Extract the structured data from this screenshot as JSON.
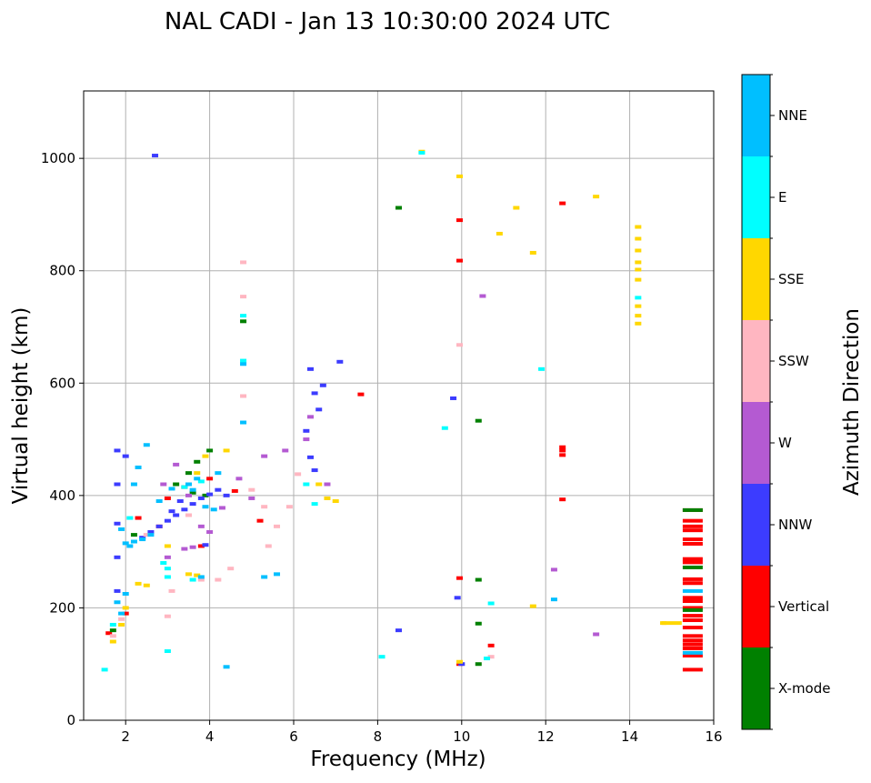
{
  "chart_data": {
    "type": "scatter",
    "title": "NAL CADI - Jan 13 10:30:00 2024 UTC",
    "xlabel": "Frequency (MHz)",
    "ylabel": "Virtual height (km)",
    "xlim": [
      1,
      16
    ],
    "ylim": [
      0,
      1120
    ],
    "xticks": [
      2,
      4,
      6,
      8,
      10,
      12,
      14,
      16
    ],
    "yticks": [
      0,
      200,
      400,
      600,
      800,
      1000
    ],
    "grid": true,
    "colorbar": {
      "label": "Azimuth Direction",
      "categories": [
        "X-mode",
        "Vertical",
        "NNW",
        "W",
        "SSW",
        "SSE",
        "E",
        "NNE"
      ],
      "colors": [
        "#008000",
        "#ff0000",
        "#3c3cff",
        "#b45ad2",
        "#ffb6c1",
        "#ffd700",
        "#00ffff",
        "#00bfff"
      ]
    },
    "series": [
      {
        "name": "Vertical",
        "color": "#ff0000",
        "points": [
          [
            15.5,
            374
          ],
          [
            15.5,
            355
          ],
          [
            15.5,
            345
          ],
          [
            15.5,
            338
          ],
          [
            15.5,
            322
          ],
          [
            15.5,
            314
          ],
          [
            15.5,
            287
          ],
          [
            15.5,
            281
          ],
          [
            15.5,
            251
          ],
          [
            15.5,
            244
          ],
          [
            15.5,
            218
          ],
          [
            15.5,
            212
          ],
          [
            15.5,
            200
          ],
          [
            15.5,
            186
          ],
          [
            15.5,
            178
          ],
          [
            15.5,
            165
          ],
          [
            15.5,
            150
          ],
          [
            15.5,
            142
          ],
          [
            15.5,
            135
          ],
          [
            15.5,
            128
          ],
          [
            15.5,
            115
          ],
          [
            15.5,
            90
          ],
          [
            12.4,
            920
          ],
          [
            12.4,
            486
          ],
          [
            12.4,
            480
          ],
          [
            12.4,
            472
          ],
          [
            12.4,
            393
          ],
          [
            9.95,
            890
          ],
          [
            9.95,
            818
          ],
          [
            9.95,
            253
          ],
          [
            9.95,
            100
          ],
          [
            10.7,
            133
          ],
          [
            7.6,
            580
          ],
          [
            2.3,
            360
          ],
          [
            2.8,
            345
          ],
          [
            3.4,
            415
          ],
          [
            3.8,
            310
          ],
          [
            4.0,
            430
          ],
          [
            4.6,
            408
          ],
          [
            5.2,
            355
          ],
          [
            1.6,
            155
          ],
          [
            2.0,
            190
          ],
          [
            3.0,
            395
          ]
        ]
      },
      {
        "name": "X-mode",
        "color": "#008000",
        "points": [
          [
            15.5,
            374
          ],
          [
            15.5,
            272
          ],
          [
            15.5,
            196
          ],
          [
            8.5,
            912
          ],
          [
            10.4,
            533
          ],
          [
            10.4,
            250
          ],
          [
            10.4,
            172
          ],
          [
            10.4,
            100
          ],
          [
            4.8,
            710
          ],
          [
            3.6,
            405
          ],
          [
            3.9,
            400
          ],
          [
            3.7,
            460
          ],
          [
            4.0,
            480
          ],
          [
            3.2,
            420
          ],
          [
            3.5,
            440
          ],
          [
            1.7,
            160
          ],
          [
            2.2,
            330
          ]
        ]
      },
      {
        "name": "NNW",
        "color": "#3c3cff",
        "points": [
          [
            2.7,
            1005
          ],
          [
            6.4,
            625
          ],
          [
            6.5,
            582
          ],
          [
            6.7,
            596
          ],
          [
            6.6,
            553
          ],
          [
            6.3,
            515
          ],
          [
            6.4,
            468
          ],
          [
            6.5,
            445
          ],
          [
            7.1,
            638
          ],
          [
            9.8,
            573
          ],
          [
            9.9,
            218
          ],
          [
            8.5,
            160
          ],
          [
            10.0,
            100
          ],
          [
            2.4,
            325
          ],
          [
            2.6,
            335
          ],
          [
            2.8,
            345
          ],
          [
            3.0,
            355
          ],
          [
            3.2,
            365
          ],
          [
            3.4,
            375
          ],
          [
            3.6,
            385
          ],
          [
            3.8,
            395
          ],
          [
            4.0,
            402
          ],
          [
            4.2,
            410
          ],
          [
            3.1,
            372
          ],
          [
            3.3,
            390
          ],
          [
            2.0,
            470
          ],
          [
            1.8,
            480
          ],
          [
            1.8,
            420
          ],
          [
            1.8,
            350
          ],
          [
            1.8,
            290
          ],
          [
            1.8,
            230
          ],
          [
            3.9,
            312
          ],
          [
            4.4,
            400
          ]
        ]
      },
      {
        "name": "W",
        "color": "#b45ad2",
        "points": [
          [
            10.5,
            755
          ],
          [
            12.2,
            268
          ],
          [
            13.2,
            153
          ],
          [
            6.4,
            540
          ],
          [
            6.3,
            500
          ],
          [
            6.8,
            420
          ],
          [
            5.8,
            480
          ],
          [
            5.3,
            470
          ],
          [
            3.4,
            305
          ],
          [
            3.6,
            308
          ],
          [
            4.0,
            335
          ],
          [
            3.8,
            345
          ],
          [
            4.3,
            378
          ],
          [
            5.0,
            395
          ],
          [
            4.7,
            430
          ],
          [
            3.5,
            400
          ],
          [
            3.2,
            455
          ],
          [
            3.0,
            290
          ],
          [
            2.9,
            420
          ]
        ]
      },
      {
        "name": "SSW",
        "color": "#ffb6c1",
        "points": [
          [
            4.8,
            815
          ],
          [
            4.8,
            754
          ],
          [
            4.8,
            577
          ],
          [
            9.95,
            668
          ],
          [
            10.7,
            113
          ],
          [
            6.1,
            438
          ],
          [
            5.0,
            410
          ],
          [
            5.3,
            380
          ],
          [
            5.6,
            345
          ],
          [
            5.9,
            380
          ],
          [
            4.5,
            270
          ],
          [
            4.2,
            250
          ],
          [
            3.8,
            250
          ],
          [
            3.1,
            230
          ],
          [
            3.0,
            185
          ],
          [
            2.5,
            330
          ],
          [
            1.9,
            180
          ],
          [
            1.7,
            150
          ],
          [
            3.5,
            365
          ],
          [
            5.4,
            310
          ]
        ]
      },
      {
        "name": "SSE",
        "color": "#ffd700",
        "points": [
          [
            9.05,
            1012
          ],
          [
            9.95,
            968
          ],
          [
            13.2,
            932
          ],
          [
            11.3,
            912
          ],
          [
            10.9,
            866
          ],
          [
            11.7,
            832
          ],
          [
            14.2,
            878
          ],
          [
            14.2,
            857
          ],
          [
            14.2,
            836
          ],
          [
            14.2,
            815
          ],
          [
            14.2,
            802
          ],
          [
            14.2,
            784
          ],
          [
            14.2,
            737
          ],
          [
            14.2,
            720
          ],
          [
            14.2,
            706
          ],
          [
            14.8,
            173
          ],
          [
            15.0,
            173
          ],
          [
            9.95,
            104
          ],
          [
            11.7,
            203
          ],
          [
            6.6,
            420
          ],
          [
            6.8,
            395
          ],
          [
            7.0,
            390
          ],
          [
            3.7,
            258
          ],
          [
            3.5,
            260
          ],
          [
            2.3,
            243
          ],
          [
            2.5,
            240
          ],
          [
            1.7,
            140
          ],
          [
            1.9,
            170
          ],
          [
            2.0,
            200
          ],
          [
            3.0,
            310
          ],
          [
            3.7,
            440
          ],
          [
            3.9,
            470
          ],
          [
            4.4,
            480
          ]
        ]
      },
      {
        "name": "E",
        "color": "#00ffff",
        "points": [
          [
            9.05,
            1010
          ],
          [
            4.8,
            720
          ],
          [
            4.8,
            640
          ],
          [
            14.2,
            752
          ],
          [
            11.9,
            625
          ],
          [
            9.6,
            520
          ],
          [
            10.7,
            208
          ],
          [
            10.6,
            110
          ],
          [
            8.1,
            113
          ],
          [
            6.5,
            385
          ],
          [
            6.3,
            420
          ],
          [
            3.0,
            123
          ],
          [
            2.9,
            280
          ],
          [
            3.0,
            270
          ],
          [
            3.0,
            255
          ],
          [
            3.6,
            250
          ],
          [
            3.4,
            415
          ],
          [
            3.8,
            425
          ],
          [
            1.5,
            90
          ],
          [
            2.1,
            360
          ],
          [
            1.7,
            170
          ]
        ]
      },
      {
        "name": "NNE",
        "color": "#00bfff",
        "points": [
          [
            12.2,
            215
          ],
          [
            4.8,
            634
          ],
          [
            4.8,
            530
          ],
          [
            15.5,
            230
          ],
          [
            15.5,
            120
          ],
          [
            5.3,
            255
          ],
          [
            5.6,
            260
          ],
          [
            4.4,
            95
          ],
          [
            2.2,
            318
          ],
          [
            2.4,
            322
          ],
          [
            2.6,
            330
          ],
          [
            2.0,
            315
          ],
          [
            2.1,
            310
          ],
          [
            1.9,
            340
          ],
          [
            2.3,
            450
          ],
          [
            2.2,
            420
          ],
          [
            2.5,
            490
          ],
          [
            2.0,
            225
          ],
          [
            1.8,
            210
          ],
          [
            1.9,
            190
          ],
          [
            3.1,
            412
          ],
          [
            3.5,
            420
          ],
          [
            3.6,
            410
          ],
          [
            3.7,
            430
          ],
          [
            3.9,
            380
          ],
          [
            4.1,
            375
          ],
          [
            2.8,
            390
          ],
          [
            3.8,
            255
          ],
          [
            4.2,
            440
          ]
        ]
      }
    ]
  }
}
